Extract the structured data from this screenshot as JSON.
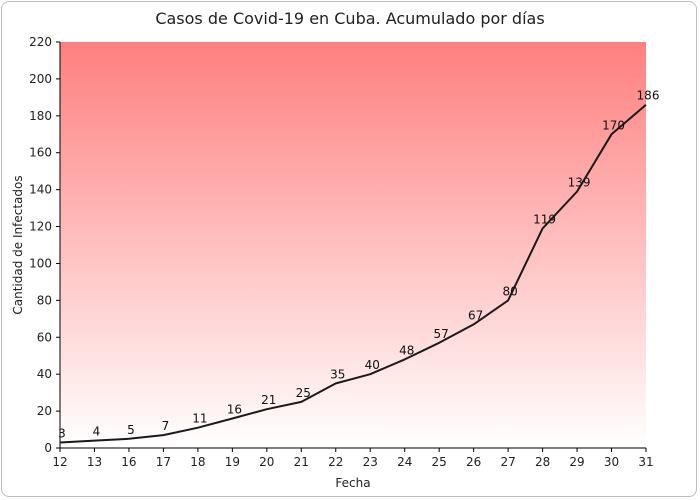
{
  "chart_data": {
    "type": "line",
    "title": "Casos de Covid-19 en Cuba. Acumulado por días",
    "xlabel": "Fecha",
    "ylabel": "Cantidad de Infectados",
    "categories": [
      "12",
      "13",
      "16",
      "17",
      "18",
      "19",
      "20",
      "21",
      "22",
      "23",
      "24",
      "25",
      "26",
      "27",
      "28",
      "29",
      "30",
      "31"
    ],
    "series": [
      {
        "values": [
          3,
          4,
          5,
          7,
          11,
          16,
          21,
          25,
          35,
          40,
          48,
          57,
          67,
          80,
          119,
          139,
          170,
          186
        ]
      }
    ],
    "ylim": [
      0,
      220
    ],
    "yticks": [
      0,
      20,
      40,
      60,
      80,
      100,
      120,
      140,
      160,
      180,
      200,
      220
    ],
    "grid": false,
    "legend": "none",
    "colors": {
      "line": "#1a1a1a",
      "plot_gradient_top": "#ff7f7f",
      "plot_gradient_bottom": "#ffffff",
      "axis": "#000000"
    }
  }
}
